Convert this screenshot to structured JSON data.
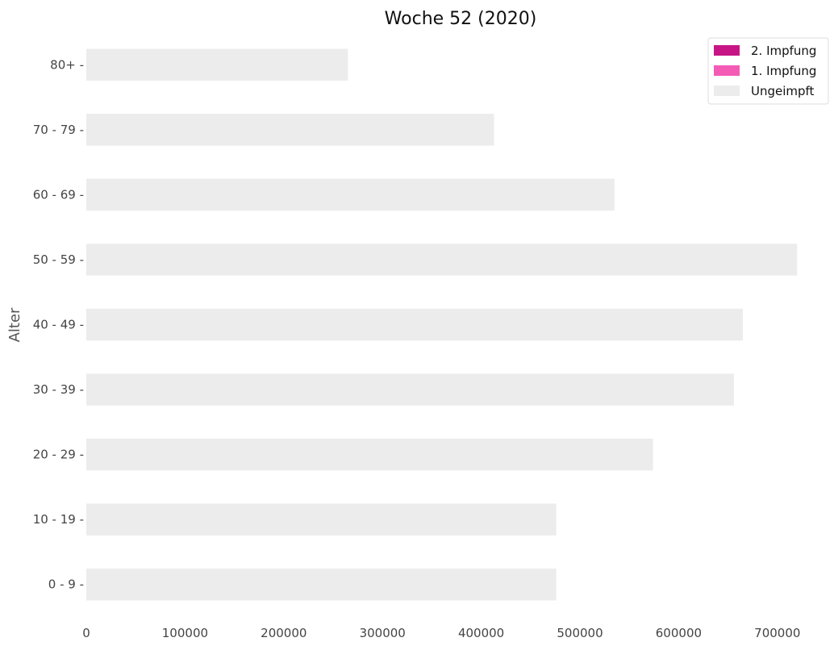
{
  "chart_data": {
    "type": "bar",
    "orientation": "horizontal",
    "stacked": true,
    "title": "Woche 52 (2020)",
    "xlabel": "",
    "ylabel": "Alter",
    "categories": [
      "80+",
      "70 - 79",
      "60 - 69",
      "50 - 59",
      "40 - 49",
      "30 - 39",
      "20 - 29",
      "10 - 19",
      "0 - 9"
    ],
    "series": [
      {
        "name": "Ungeimpft",
        "color": "#ececec",
        "values": [
          265000,
          413000,
          535000,
          720000,
          665000,
          656000,
          574000,
          476000,
          476000
        ]
      },
      {
        "name": "1. Impfung",
        "color": "#f45bb5",
        "values": [
          0,
          0,
          0,
          0,
          0,
          0,
          0,
          0,
          0
        ]
      },
      {
        "name": "2. Impfung",
        "color": "#c71585",
        "values": [
          0,
          0,
          0,
          0,
          0,
          0,
          0,
          0,
          0
        ]
      }
    ],
    "legend_order": [
      "2. Impfung",
      "1. Impfung",
      "Ungeimpft"
    ],
    "xlim": [
      0,
      750000
    ],
    "xticks": [
      0,
      100000,
      200000,
      300000,
      400000,
      500000,
      600000,
      700000
    ],
    "grid": false,
    "legend_position": "top-right"
  }
}
